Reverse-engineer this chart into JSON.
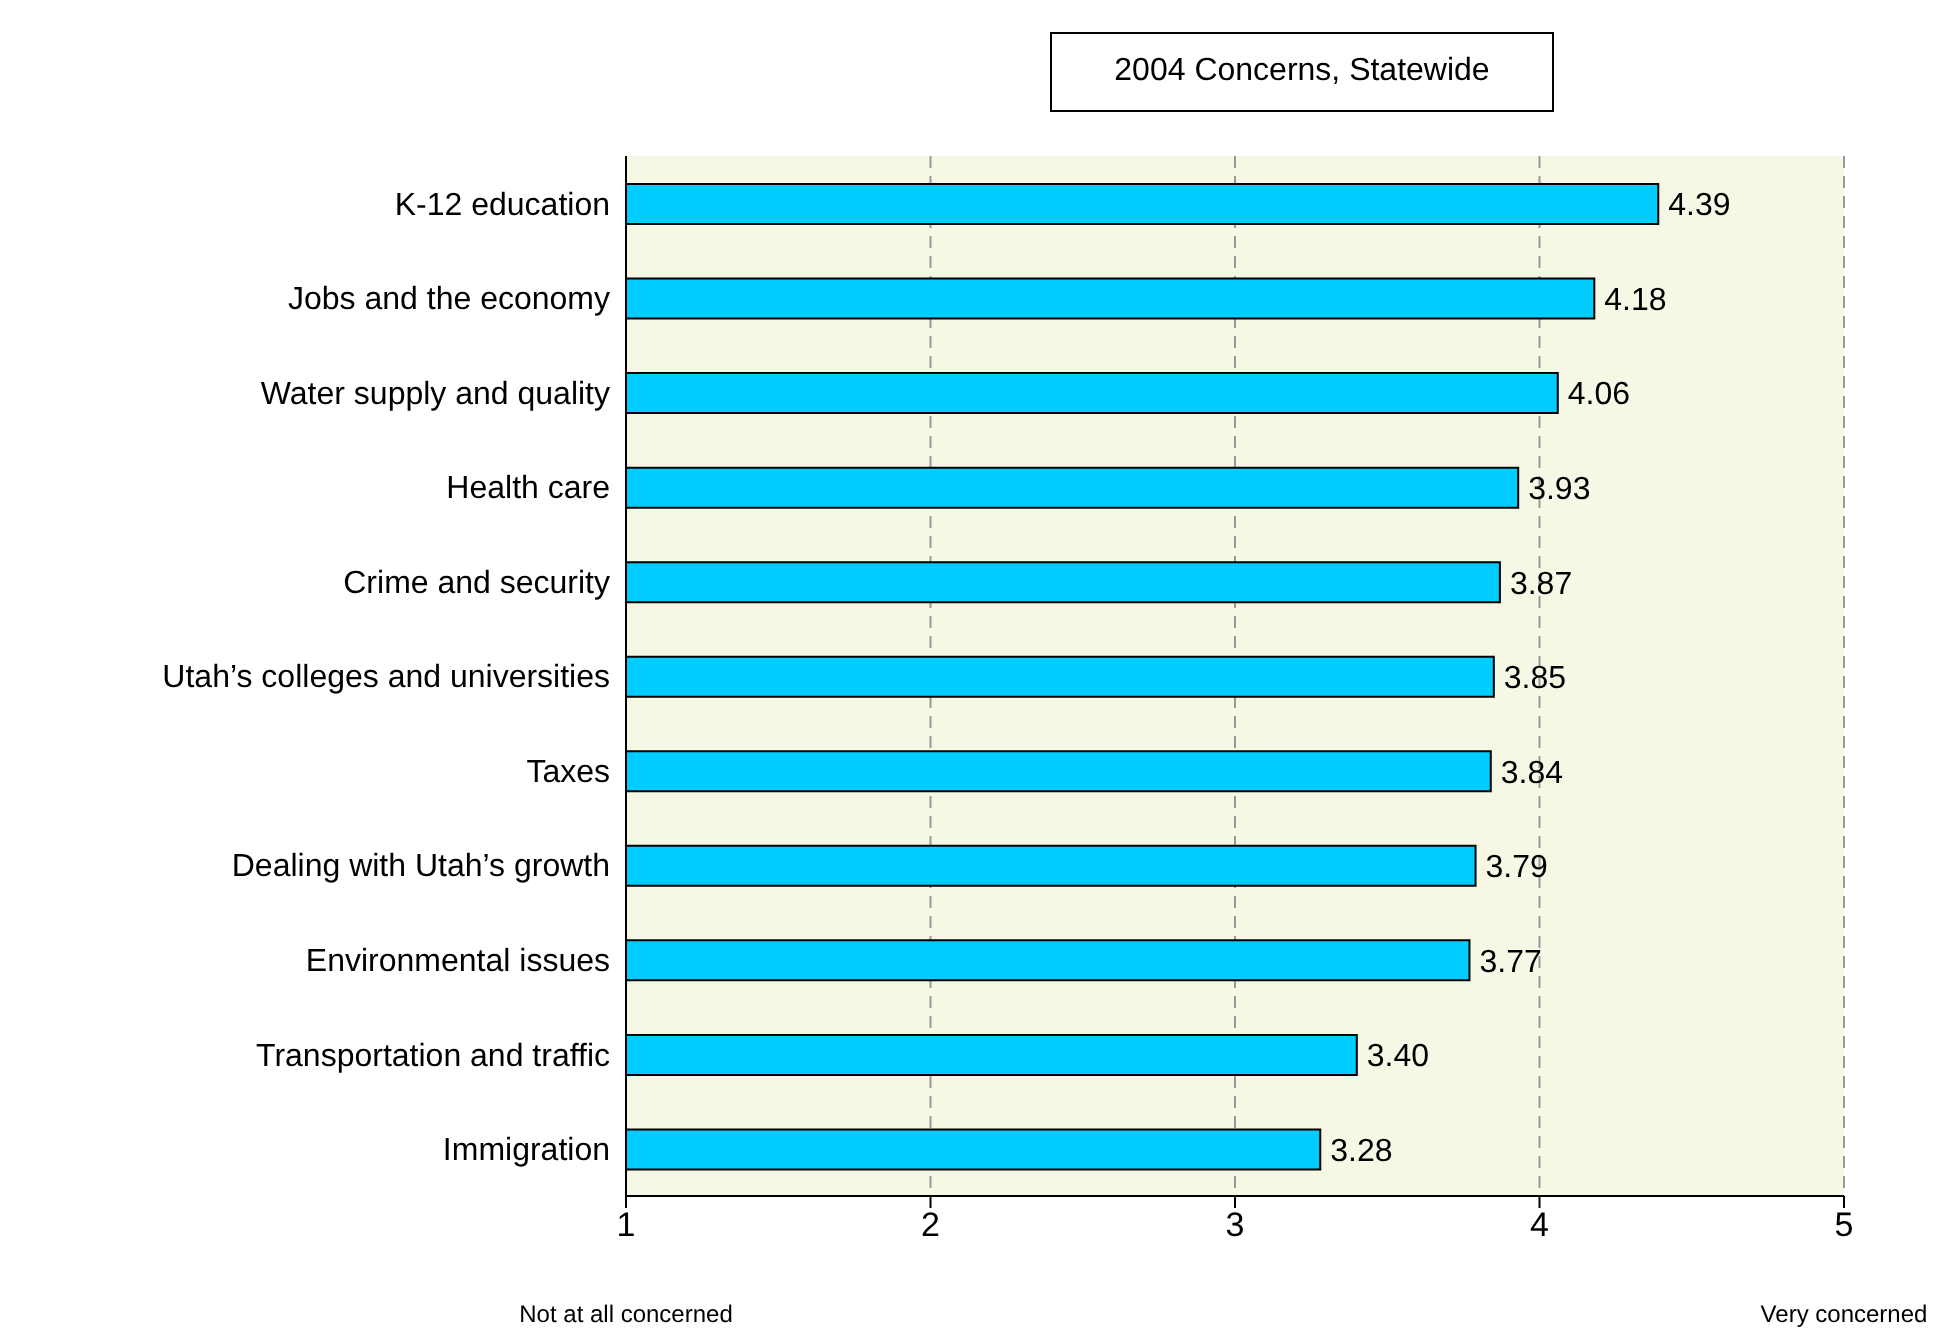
{
  "chart_data": {
    "type": "bar",
    "orientation": "horizontal",
    "title": "2004 Concerns, Statewide",
    "categories": [
      "K-12 education",
      "Jobs and the economy",
      "Water supply and quality",
      "Health care",
      "Crime and security",
      "Utah’s colleges and universities",
      "Taxes",
      "Dealing with Utah’s growth",
      "Environmental issues",
      "Transportation and traffic",
      "Immigration"
    ],
    "values": [
      4.39,
      4.18,
      4.06,
      3.93,
      3.87,
      3.85,
      3.84,
      3.79,
      3.77,
      3.4,
      3.28
    ],
    "value_labels": [
      "4.39",
      "4.18",
      "4.06",
      "3.93",
      "3.87",
      "3.85",
      "3.84",
      "3.79",
      "3.77",
      "3.40",
      "3.28"
    ],
    "color": "#00ccff",
    "xlim": [
      1,
      5
    ],
    "xticks": [
      1,
      2,
      3,
      4,
      5
    ],
    "grid": "x",
    "annotations": [
      "Not at all concerned",
      "Very concerned"
    ]
  }
}
